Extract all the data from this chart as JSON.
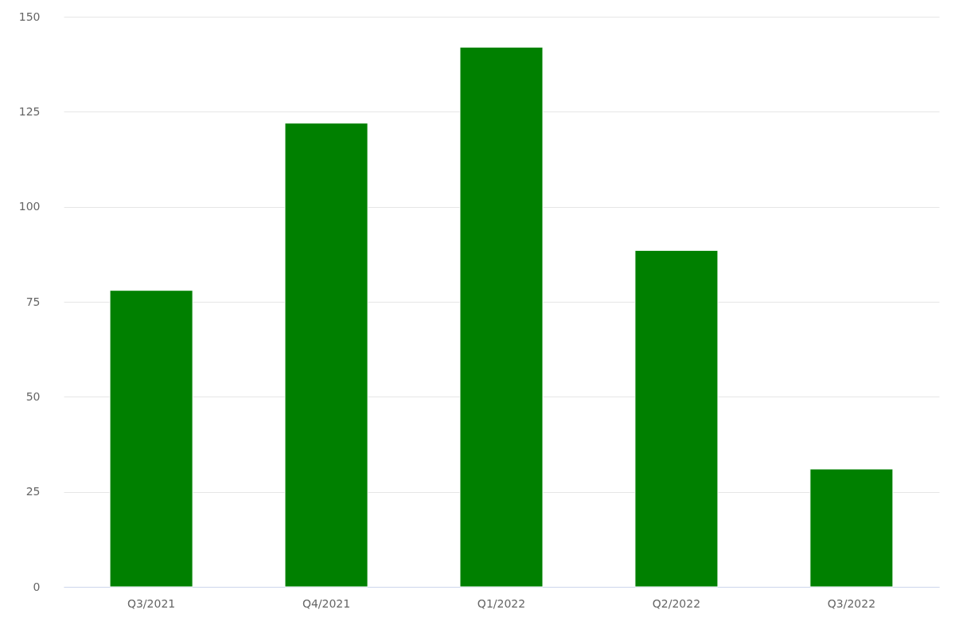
{
  "chart_data": {
    "type": "bar",
    "categories": [
      "Q3/2021",
      "Q4/2021",
      "Q1/2022",
      "Q2/2022",
      "Q3/2022"
    ],
    "values": [
      78,
      122,
      142,
      88.5,
      31
    ],
    "color": "#008000",
    "ylim": [
      0,
      150
    ],
    "yticks": [
      0,
      25,
      50,
      75,
      100,
      125,
      150
    ],
    "grid": "y"
  }
}
